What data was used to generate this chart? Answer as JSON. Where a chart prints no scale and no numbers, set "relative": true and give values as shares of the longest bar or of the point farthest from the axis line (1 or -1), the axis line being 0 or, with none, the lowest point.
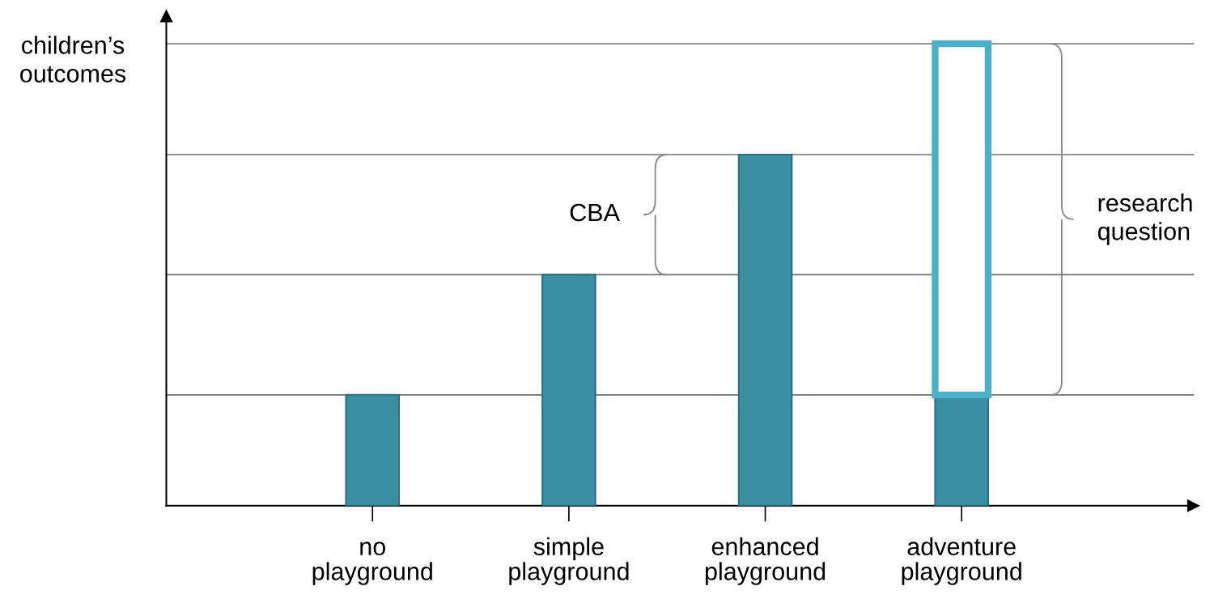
{
  "chart_data": {
    "type": "bar",
    "relative": true,
    "stacked": true,
    "ylabel": "children’s outcomes",
    "categories": [
      "no\nplayground",
      "simple\nplayground",
      "enhanced\nplayground",
      "adventure\nplayground"
    ],
    "series": [
      {
        "color": "#3a8fa3",
        "values": [
          0.24,
          0.5,
          0.76,
          0.24
        ]
      },
      {
        "color": "#4bb0c8",
        "values": [
          0,
          0,
          0,
          0.76
        ]
      }
    ],
    "ref_lines": [
      {
        "axis": "y",
        "value": 0.24,
        "color": "#707070"
      },
      {
        "axis": "y",
        "value": 0.5,
        "color": "#707070"
      },
      {
        "axis": "y",
        "value": 0.76,
        "color": "#707070"
      },
      {
        "axis": "y",
        "value": 1,
        "color": "#707070"
      }
    ],
    "annotations": [
      "CBA",
      "research\nquestion"
    ],
    "grid": false
  }
}
